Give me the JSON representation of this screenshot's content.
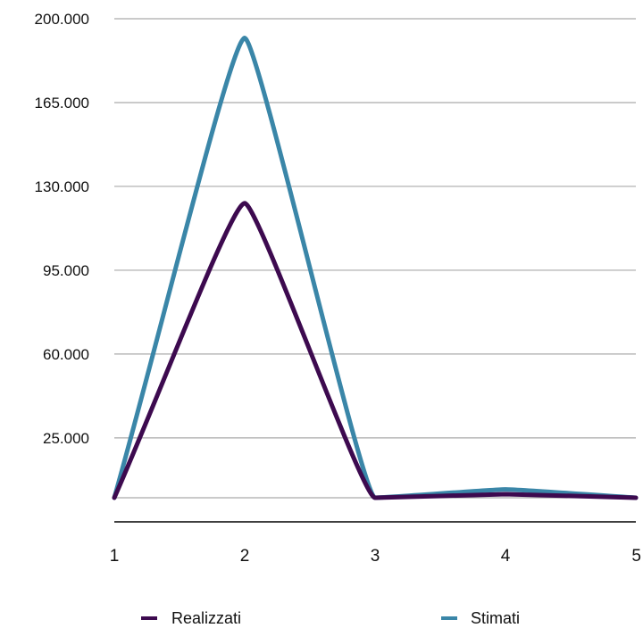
{
  "chart_data": {
    "type": "line",
    "title": "",
    "xlabel": "",
    "ylabel": "",
    "categories": [
      "1",
      "2",
      "3",
      "4",
      "5"
    ],
    "ylim": [
      0,
      200000
    ],
    "yticks": [
      25000,
      60000,
      95000,
      130000,
      165000,
      200000
    ],
    "ytick_labels": [
      "25.000",
      "60.000",
      "95.000",
      "130.000",
      "165.000",
      "200.000"
    ],
    "grid": true,
    "legend_position": "bottom",
    "series": [
      {
        "name": "Realizzati",
        "color": "#3d0a4f",
        "values": [
          0,
          123000,
          0,
          1500,
          0
        ]
      },
      {
        "name": "Stimati",
        "color": "#3a86a8",
        "values": [
          0,
          192000,
          0,
          3500,
          0
        ]
      }
    ],
    "legend": {
      "realizzati": "Realizzati",
      "stimati": "Stimati"
    }
  }
}
